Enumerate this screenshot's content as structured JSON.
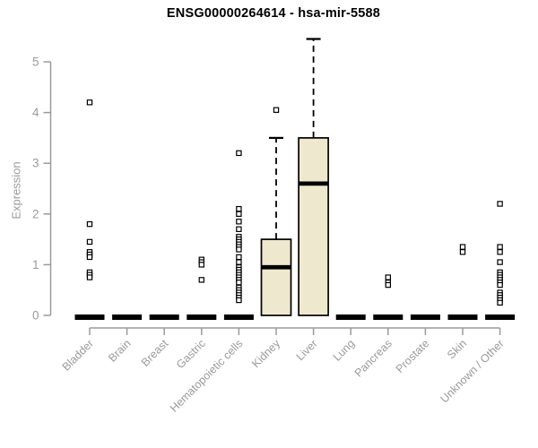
{
  "chart_data": {
    "type": "boxplot",
    "title": "ENSG00000264614 - hsa-mir-5588",
    "ylabel": "Expression",
    "xlabel": "",
    "ylim": [
      0,
      5.5
    ],
    "yticks": [
      0,
      1,
      2,
      3,
      4,
      5
    ],
    "grid": false,
    "legend": "none",
    "box_fill_color": "#eee8cf",
    "box_stroke_color": "#000000",
    "axis_color": "#9a9a9a",
    "categories": [
      "Bladder",
      "Brain",
      "Breast",
      "Gastric",
      "Hematopoietic cells",
      "Kidney",
      "Liver",
      "Lung",
      "Pancreas",
      "Prostate",
      "Skin",
      "Unknown / Other"
    ],
    "series": [
      {
        "category": "Bladder",
        "q1": 0,
        "median": 0,
        "q3": 0,
        "whisker_low": 0,
        "whisker_high": 0,
        "outliers": [
          4.2,
          1.8,
          1.45,
          1.25,
          1.2,
          1.15,
          0.85,
          0.8,
          0.75
        ]
      },
      {
        "category": "Brain",
        "q1": 0,
        "median": 0,
        "q3": 0,
        "whisker_low": 0,
        "whisker_high": 0,
        "outliers": []
      },
      {
        "category": "Breast",
        "q1": 0,
        "median": 0,
        "q3": 0,
        "whisker_low": 0,
        "whisker_high": 0,
        "outliers": []
      },
      {
        "category": "Gastric",
        "q1": 0,
        "median": 0,
        "q3": 0,
        "whisker_low": 0,
        "whisker_high": 0,
        "outliers": [
          1.1,
          1.05,
          1.0,
          0.7
        ]
      },
      {
        "category": "Hematopoietic cells",
        "q1": 0,
        "median": 0,
        "q3": 0,
        "whisker_low": 0,
        "whisker_high": 0,
        "outliers": [
          3.2,
          2.1,
          2.0,
          1.85,
          1.7,
          1.55,
          1.5,
          1.45,
          1.4,
          1.35,
          1.3,
          1.15,
          1.05,
          0.95,
          0.9,
          0.85,
          0.8,
          0.75,
          0.7,
          0.65,
          0.55,
          0.5,
          0.45,
          0.4,
          0.35,
          0.3
        ]
      },
      {
        "category": "Kidney",
        "q1": 0,
        "median": 0.95,
        "q3": 1.5,
        "whisker_low": 0,
        "whisker_high": 3.5,
        "outliers": [
          4.05
        ]
      },
      {
        "category": "Liver",
        "q1": 0,
        "median": 2.6,
        "q3": 3.5,
        "whisker_low": 0,
        "whisker_high": 5.45,
        "outliers": []
      },
      {
        "category": "Lung",
        "q1": 0,
        "median": 0,
        "q3": 0,
        "whisker_low": 0,
        "whisker_high": 0,
        "outliers": []
      },
      {
        "category": "Pancreas",
        "q1": 0,
        "median": 0,
        "q3": 0,
        "whisker_low": 0,
        "whisker_high": 0,
        "outliers": [
          0.75,
          0.65,
          0.6
        ]
      },
      {
        "category": "Prostate",
        "q1": 0,
        "median": 0,
        "q3": 0,
        "whisker_low": 0,
        "whisker_high": 0,
        "outliers": []
      },
      {
        "category": "Skin",
        "q1": 0,
        "median": 0,
        "q3": 0,
        "whisker_low": 0,
        "whisker_high": 0,
        "outliers": [
          1.35,
          1.25
        ]
      },
      {
        "category": "Unknown / Other",
        "q1": 0,
        "median": 0,
        "q3": 0,
        "whisker_low": 0,
        "whisker_high": 0,
        "outliers": [
          2.2,
          1.35,
          1.25,
          1.05,
          0.85,
          0.8,
          0.75,
          0.7,
          0.65,
          0.6,
          0.45,
          0.4,
          0.35,
          0.3,
          0.25
        ]
      }
    ]
  }
}
